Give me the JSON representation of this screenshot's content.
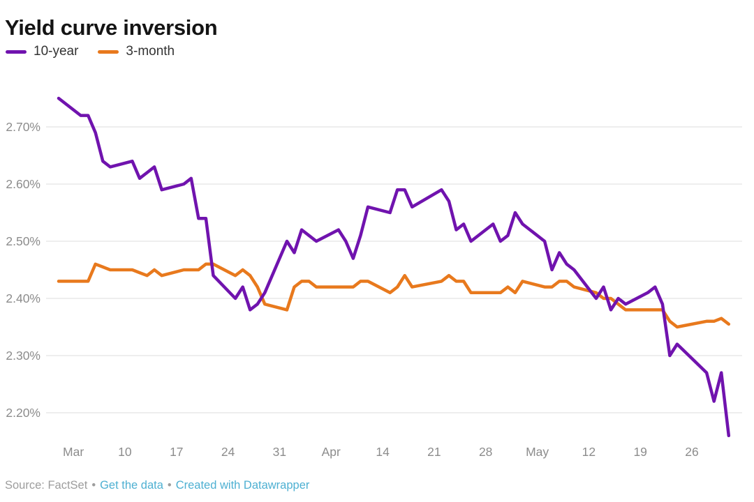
{
  "header": {
    "title": "Yield curve inversion"
  },
  "legend": [
    {
      "label": "10-year",
      "color": "#7013ae"
    },
    {
      "label": "3-month",
      "color": "#e8791d"
    }
  ],
  "chart_data": {
    "type": "line",
    "title": "Yield curve inversion",
    "xlabel": "",
    "ylabel": "",
    "x_unit": "weekday dates, Mar 1 - May 31, 2019",
    "grid": true,
    "legend_position": "top-left",
    "ylim": [
      2.14,
      2.78
    ],
    "yticks": [
      {
        "label": "2.70%",
        "value": 2.7
      },
      {
        "label": "2.60%",
        "value": 2.6
      },
      {
        "label": "2.50%",
        "value": 2.5
      },
      {
        "label": "2.40%",
        "value": 2.4
      },
      {
        "label": "2.30%",
        "value": 2.3
      },
      {
        "label": "2.20%",
        "value": 2.2
      }
    ],
    "xticks": [
      {
        "label": "Mar",
        "day": 2
      },
      {
        "label": "10",
        "day": 9
      },
      {
        "label": "17",
        "day": 16
      },
      {
        "label": "24",
        "day": 23
      },
      {
        "label": "31",
        "day": 30
      },
      {
        "label": "Apr",
        "day": 37
      },
      {
        "label": "14",
        "day": 44
      },
      {
        "label": "21",
        "day": 51
      },
      {
        "label": "28",
        "day": 58
      },
      {
        "label": "May",
        "day": 65
      },
      {
        "label": "12",
        "day": 72
      },
      {
        "label": "19",
        "day": 79
      },
      {
        "label": "26",
        "day": 86
      }
    ],
    "dates": [
      "Mar 1",
      "Mar 4",
      "Mar 5",
      "Mar 6",
      "Mar 7",
      "Mar 8",
      "Mar 11",
      "Mar 12",
      "Mar 13",
      "Mar 14",
      "Mar 15",
      "Mar 18",
      "Mar 19",
      "Mar 20",
      "Mar 21",
      "Mar 22",
      "Mar 25",
      "Mar 26",
      "Mar 27",
      "Mar 28",
      "Mar 29",
      "Apr 1",
      "Apr 2",
      "Apr 3",
      "Apr 4",
      "Apr 5",
      "Apr 8",
      "Apr 9",
      "Apr 10",
      "Apr 11",
      "Apr 12",
      "Apr 15",
      "Apr 16",
      "Apr 17",
      "Apr 18",
      "Apr 22",
      "Apr 23",
      "Apr 24",
      "Apr 25",
      "Apr 26",
      "Apr 29",
      "Apr 30",
      "May 1",
      "May 2",
      "May 3",
      "May 6",
      "May 7",
      "May 8",
      "May 9",
      "May 10",
      "May 13",
      "May 14",
      "May 15",
      "May 16",
      "May 17",
      "May 20",
      "May 21",
      "May 22",
      "May 23",
      "May 24",
      "May 28",
      "May 29",
      "May 30",
      "May 31"
    ],
    "day_offsets": [
      0,
      3,
      4,
      5,
      6,
      7,
      10,
      11,
      12,
      13,
      14,
      17,
      18,
      19,
      20,
      21,
      24,
      25,
      26,
      27,
      28,
      31,
      32,
      33,
      34,
      35,
      38,
      39,
      40,
      41,
      42,
      45,
      46,
      47,
      48,
      52,
      53,
      54,
      55,
      56,
      59,
      60,
      61,
      62,
      63,
      66,
      67,
      68,
      69,
      70,
      73,
      74,
      75,
      76,
      77,
      80,
      81,
      82,
      83,
      84,
      88,
      89,
      90,
      91
    ],
    "series": [
      {
        "name": "10-year",
        "color": "#7013ae",
        "values": [
          2.75,
          2.72,
          2.72,
          2.69,
          2.64,
          2.63,
          2.64,
          2.61,
          2.62,
          2.63,
          2.59,
          2.6,
          2.61,
          2.54,
          2.54,
          2.44,
          2.4,
          2.42,
          2.38,
          2.39,
          2.41,
          2.5,
          2.48,
          2.52,
          2.51,
          2.5,
          2.52,
          2.5,
          2.47,
          2.51,
          2.56,
          2.55,
          2.59,
          2.59,
          2.56,
          2.59,
          2.57,
          2.52,
          2.53,
          2.5,
          2.53,
          2.5,
          2.51,
          2.55,
          2.53,
          2.5,
          2.45,
          2.48,
          2.46,
          2.45,
          2.4,
          2.42,
          2.38,
          2.4,
          2.39,
          2.41,
          2.42,
          2.39,
          2.3,
          2.32,
          2.27,
          2.22,
          2.27,
          2.16
        ]
      },
      {
        "name": "3-month",
        "color": "#e8791d",
        "values": [
          2.43,
          2.43,
          2.43,
          2.46,
          2.455,
          2.45,
          2.45,
          2.445,
          2.44,
          2.45,
          2.44,
          2.45,
          2.45,
          2.45,
          2.46,
          2.46,
          2.44,
          2.45,
          2.44,
          2.42,
          2.39,
          2.38,
          2.42,
          2.43,
          2.43,
          2.42,
          2.42,
          2.42,
          2.42,
          2.43,
          2.43,
          2.41,
          2.42,
          2.44,
          2.42,
          2.43,
          2.44,
          2.43,
          2.43,
          2.41,
          2.41,
          2.41,
          2.42,
          2.41,
          2.43,
          2.42,
          2.42,
          2.43,
          2.43,
          2.42,
          2.41,
          2.4,
          2.4,
          2.39,
          2.38,
          2.38,
          2.38,
          2.38,
          2.36,
          2.35,
          2.36,
          2.36,
          2.365,
          2.355
        ]
      }
    ]
  },
  "footer": {
    "source_label": "Source: FactSet",
    "separator": "•",
    "link_get_data": "Get the data",
    "link_created_with": "Created with Datawrapper",
    "link_color": "#4eb0d2"
  }
}
